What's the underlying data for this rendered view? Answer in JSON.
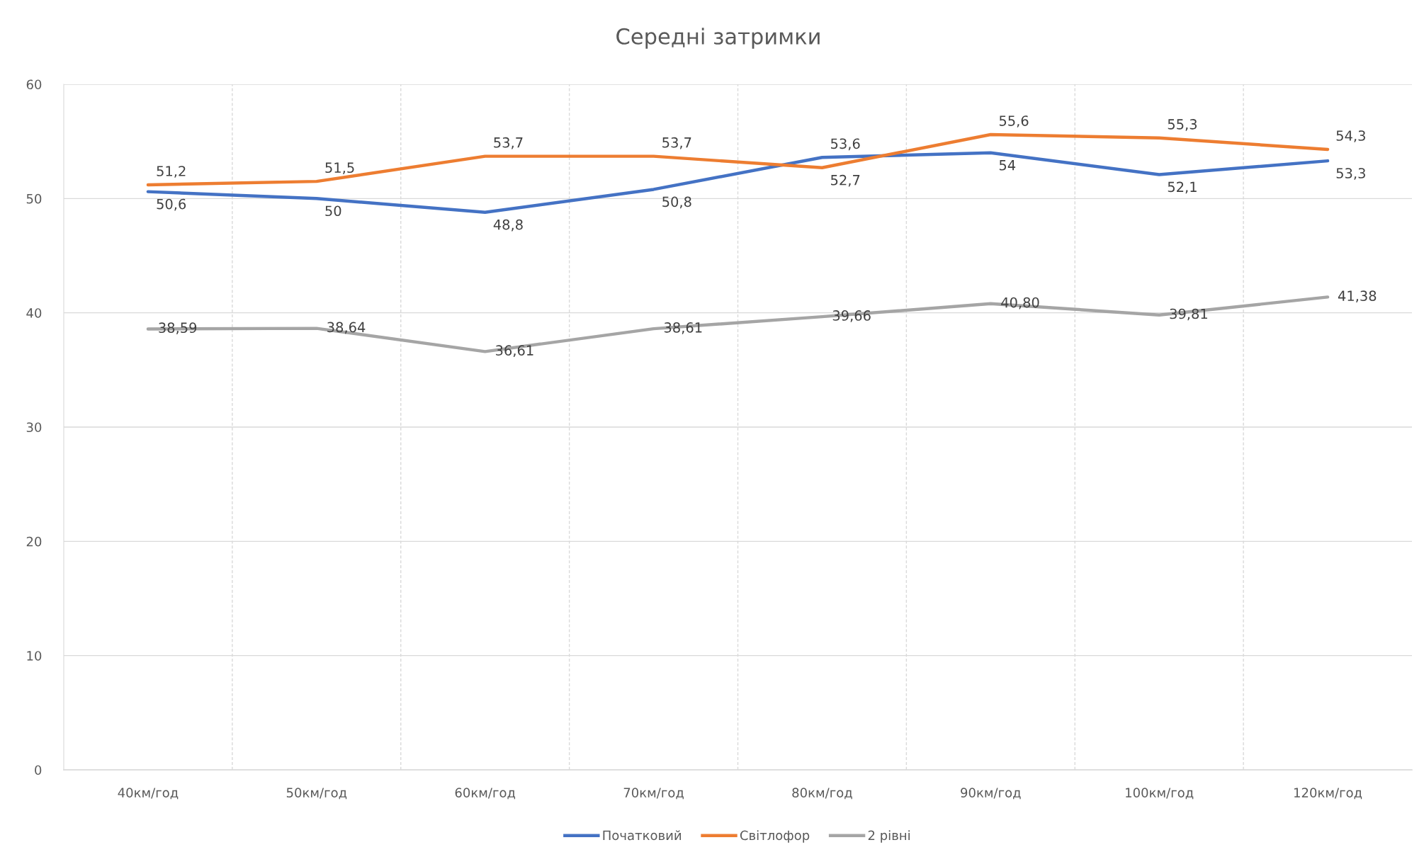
{
  "chart_data": {
    "type": "line",
    "title": "Середні затримки",
    "categories": [
      "40км/год",
      "50км/год",
      "60км/год",
      "70км/год",
      "80км/год",
      "90км/год",
      "100км/год",
      "120км/год"
    ],
    "series": [
      {
        "name": "Початковий",
        "color": "#4472c4",
        "values": [
          50.6,
          50,
          48.8,
          50.8,
          53.6,
          54,
          52.1,
          53.3
        ],
        "value_labels": [
          "50,6",
          "50",
          "48,8",
          "50,8",
          "53,6",
          "54",
          "52,1",
          "53,3"
        ]
      },
      {
        "name": "Світлофор",
        "color": "#ed7d31",
        "values": [
          51.2,
          51.5,
          53.7,
          53.7,
          52.7,
          55.6,
          55.3,
          54.3
        ],
        "value_labels": [
          "51,2",
          "51,5",
          "53,7",
          "53,7",
          "52,7",
          "55,6",
          "55,3",
          "54,3"
        ]
      },
      {
        "name": "2 рівні",
        "color": "#a5a5a5",
        "values": [
          38.59,
          38.64,
          36.61,
          38.61,
          39.66,
          40.8,
          39.81,
          41.38
        ],
        "value_labels": [
          "38,59",
          "38,64",
          "36,61",
          "38,61",
          "39,66",
          "40,80",
          "39,81",
          "41,38"
        ]
      }
    ],
    "ylim": [
      0,
      60
    ],
    "yticks": [
      0,
      10,
      20,
      30,
      40,
      50,
      60
    ],
    "grid": true,
    "legend": "bottom"
  }
}
